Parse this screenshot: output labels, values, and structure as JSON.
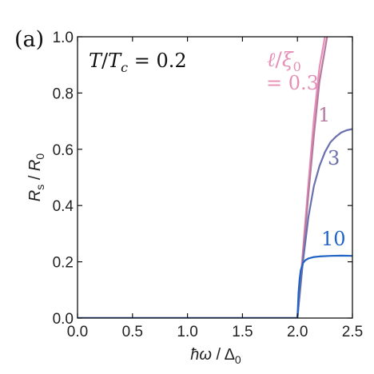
{
  "panel_label": "(a)",
  "chart_data": {
    "type": "line",
    "xlabel_main": "ħω",
    "xlabel_sep": " / ",
    "xlabel_sym": "Δ",
    "xlabel_sub": "0",
    "ylabel_main": "R",
    "ylabel_sub1": "s",
    "ylabel_sep": " / ",
    "ylabel_sym": "R",
    "ylabel_sub2": "0",
    "xlim": [
      0,
      2.5
    ],
    "ylim": [
      0,
      1.0
    ],
    "x_ticks": [
      "0.0",
      "0.5",
      "1.0",
      "1.5",
      "2.0",
      "2.5"
    ],
    "y_ticks": [
      "0.0",
      "0.2",
      "0.4",
      "0.6",
      "0.8",
      "1.0"
    ],
    "annotation": {
      "T": "T",
      "slash": "/",
      "Tc_main": "T",
      "Tc_sub": "c",
      "eq": " = 0.2"
    },
    "legend_header": {
      "ell": "ℓ",
      "slash": "/",
      "xi": "ξ",
      "xi_sub": "0"
    },
    "series": [
      {
        "label": "= 0.3",
        "color": "#e78fb6",
        "x": [
          0.0,
          2.0,
          2.05,
          2.1,
          2.15,
          2.2,
          2.25
        ],
        "y": [
          0.0,
          0.0,
          0.24,
          0.48,
          0.71,
          0.89,
          1.0
        ]
      },
      {
        "label": "1",
        "color": "#b57a9f",
        "x": [
          0.0,
          2.0,
          2.05,
          2.1,
          2.15,
          2.2,
          2.27
        ],
        "y": [
          0.0,
          0.0,
          0.22,
          0.44,
          0.65,
          0.84,
          1.0
        ]
      },
      {
        "label": "3",
        "color": "#6a6fae",
        "x": [
          0.0,
          2.0,
          2.05,
          2.1,
          2.15,
          2.2,
          2.25,
          2.3,
          2.35,
          2.4,
          2.45,
          2.5
        ],
        "y": [
          0.0,
          0.0,
          0.2,
          0.36,
          0.47,
          0.54,
          0.59,
          0.625,
          0.645,
          0.66,
          0.668,
          0.672
        ]
      },
      {
        "label": "10",
        "color": "#1f63c4",
        "x": [
          0.0,
          2.0,
          2.01,
          2.02,
          2.03,
          2.05,
          2.07,
          2.1,
          2.15,
          2.2,
          2.3,
          2.4,
          2.5
        ],
        "y": [
          0.0,
          0.0,
          0.09,
          0.14,
          0.17,
          0.195,
          0.205,
          0.212,
          0.217,
          0.219,
          0.221,
          0.222,
          0.221
        ]
      }
    ]
  }
}
